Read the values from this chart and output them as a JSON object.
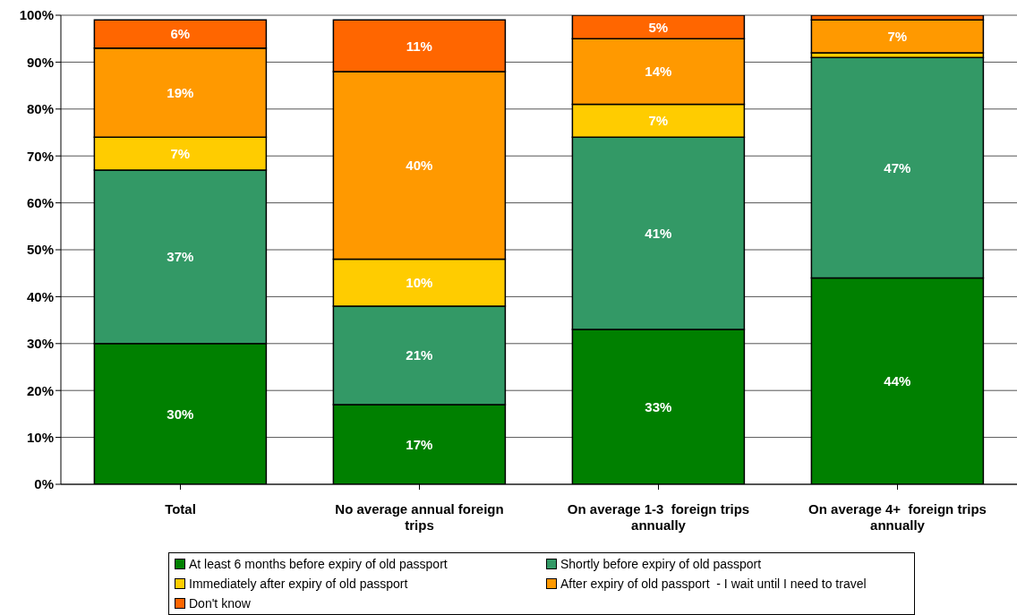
{
  "chart_data": {
    "type": "bar",
    "stacked": true,
    "categories": [
      "Total",
      "No average annual foreign trips",
      "On average 1-3  foreign trips annually",
      "On average 4+  foreign trips annually"
    ],
    "series": [
      {
        "name": "At least 6 months before expiry of old passport",
        "color": "#008000",
        "values": [
          30,
          17,
          33,
          44
        ],
        "value_labels": [
          "30%",
          "17%",
          "33%",
          "44%"
        ]
      },
      {
        "name": "Shortly before expiry of old passport",
        "color": "#339966",
        "values": [
          37,
          21,
          41,
          47
        ],
        "value_labels": [
          "37%",
          "21%",
          "41%",
          "47%"
        ]
      },
      {
        "name": "Immediately after expiry of old passport",
        "color": "#ffcc00",
        "values": [
          7,
          10,
          7,
          1
        ],
        "value_labels": [
          "7%",
          "10%",
          "7%",
          null
        ]
      },
      {
        "name": "After expiry of old passport  - I wait until I need to travel",
        "color": "#ff9900",
        "values": [
          19,
          40,
          14,
          7
        ],
        "value_labels": [
          "19%",
          "40%",
          "14%",
          "7%"
        ]
      },
      {
        "name": "Don't know",
        "color": "#ff6600",
        "values": [
          6,
          11,
          5,
          1
        ],
        "value_labels": [
          "6%",
          "11%",
          "5%",
          null
        ]
      }
    ],
    "ylim": [
      0,
      100
    ],
    "yticks": [
      {
        "value": 0,
        "label": "0%"
      },
      {
        "value": 10,
        "label": "10%"
      },
      {
        "value": 20,
        "label": "20%"
      },
      {
        "value": 30,
        "label": "30%"
      },
      {
        "value": 40,
        "label": "40%"
      },
      {
        "value": 50,
        "label": "50%"
      },
      {
        "value": 60,
        "label": "60%"
      },
      {
        "value": 70,
        "label": "70%"
      },
      {
        "value": 80,
        "label": "80%"
      },
      {
        "value": 90,
        "label": "90%"
      },
      {
        "value": 100,
        "label": "100%"
      }
    ],
    "grid": "y",
    "legend": "bottom"
  }
}
